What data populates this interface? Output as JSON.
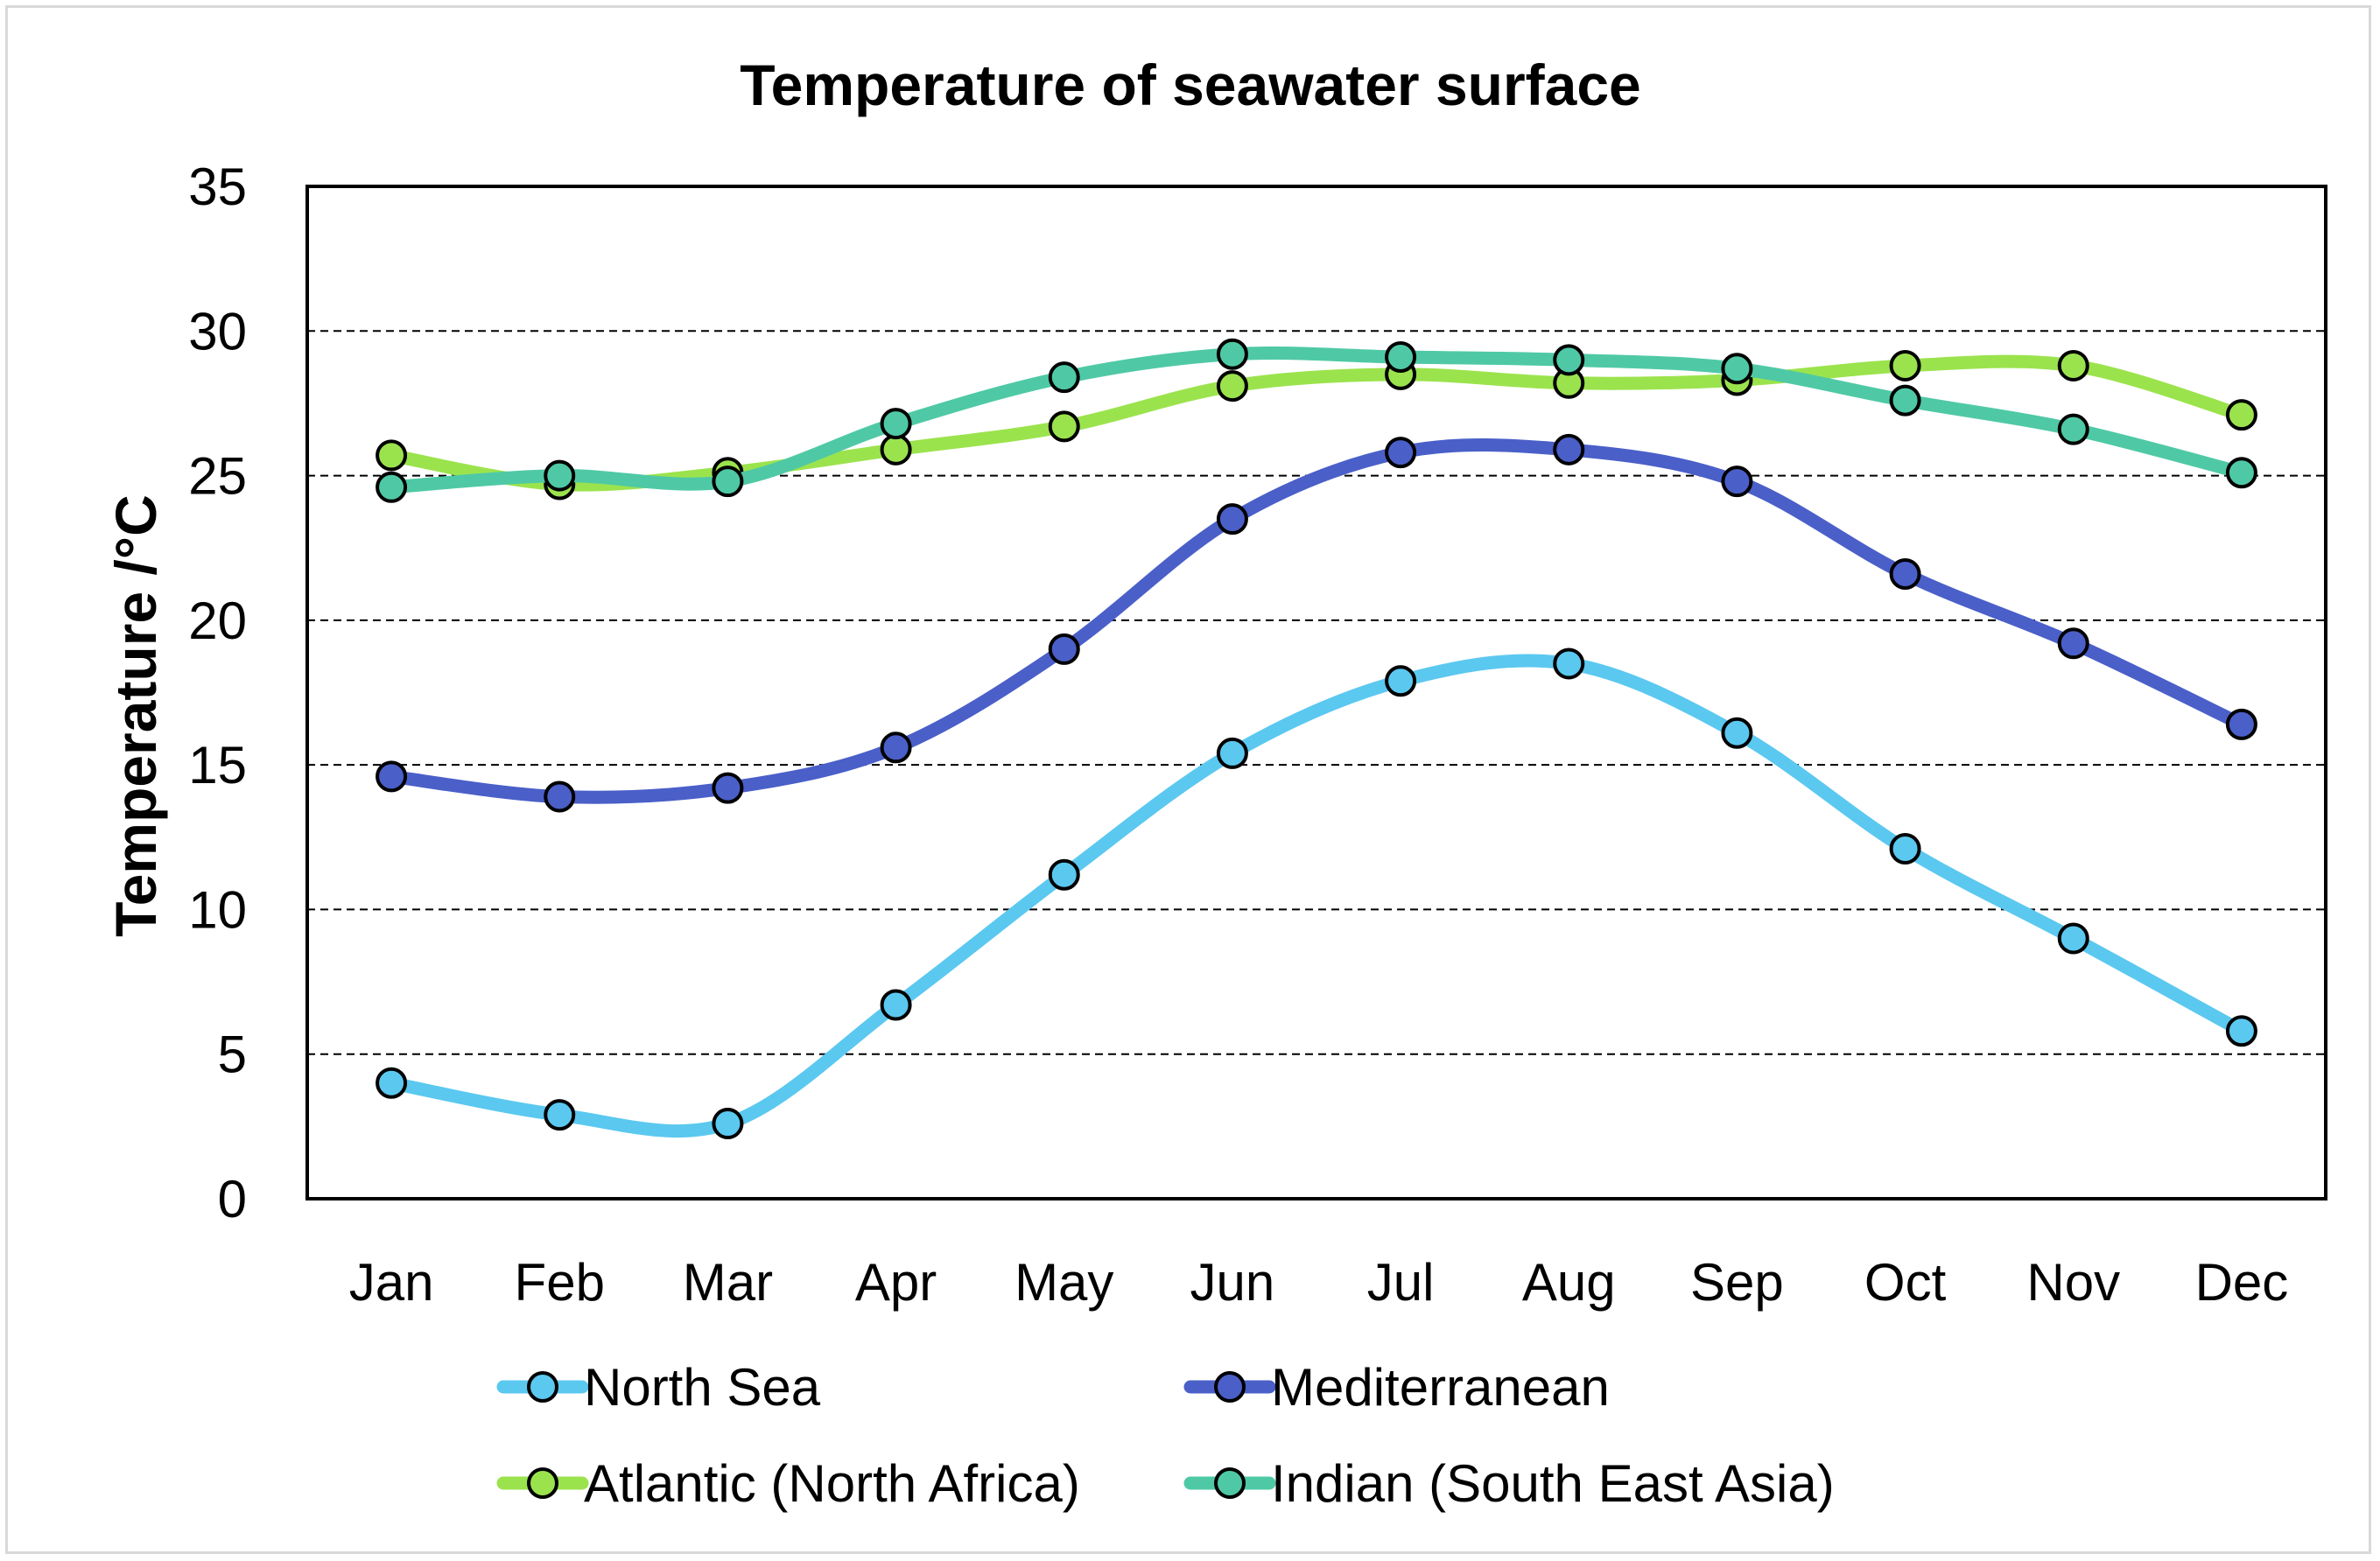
{
  "chart_data": {
    "type": "line",
    "title": "Temperature of seawater surface",
    "xlabel": "",
    "ylabel": "Temperature /°C",
    "ylim": [
      0,
      35
    ],
    "yticks": [
      0,
      5,
      10,
      15,
      20,
      25,
      30,
      35
    ],
    "grid": "horizontal dashed",
    "legend_position": "bottom",
    "categories": [
      "Jan",
      "Feb",
      "Mar",
      "Apr",
      "May",
      "Jun",
      "Jul",
      "Aug",
      "Sep",
      "Oct",
      "Nov",
      "Dec"
    ],
    "series": [
      {
        "name": "North Sea",
        "color": "#5bc8f0",
        "values": [
          4.0,
          2.9,
          2.6,
          6.7,
          11.2,
          15.4,
          17.9,
          18.5,
          16.1,
          12.1,
          9.0,
          5.8
        ]
      },
      {
        "name": "Mediterranean",
        "color": "#4a5fc8",
        "values": [
          14.6,
          13.9,
          14.2,
          15.6,
          19.0,
          23.5,
          25.8,
          25.9,
          24.8,
          21.6,
          19.2,
          16.4
        ]
      },
      {
        "name": "Atlantic (North Africa)",
        "color": "#9be34d",
        "values": [
          25.7,
          24.7,
          25.1,
          25.9,
          26.7,
          28.1,
          28.5,
          28.2,
          28.3,
          28.8,
          28.8,
          27.1
        ]
      },
      {
        "name": "Indian (South East Asia)",
        "color": "#4fc9a5",
        "values": [
          24.6,
          25.0,
          24.8,
          26.8,
          28.4,
          29.2,
          29.1,
          29.0,
          28.7,
          27.6,
          26.6,
          25.1
        ]
      }
    ]
  }
}
